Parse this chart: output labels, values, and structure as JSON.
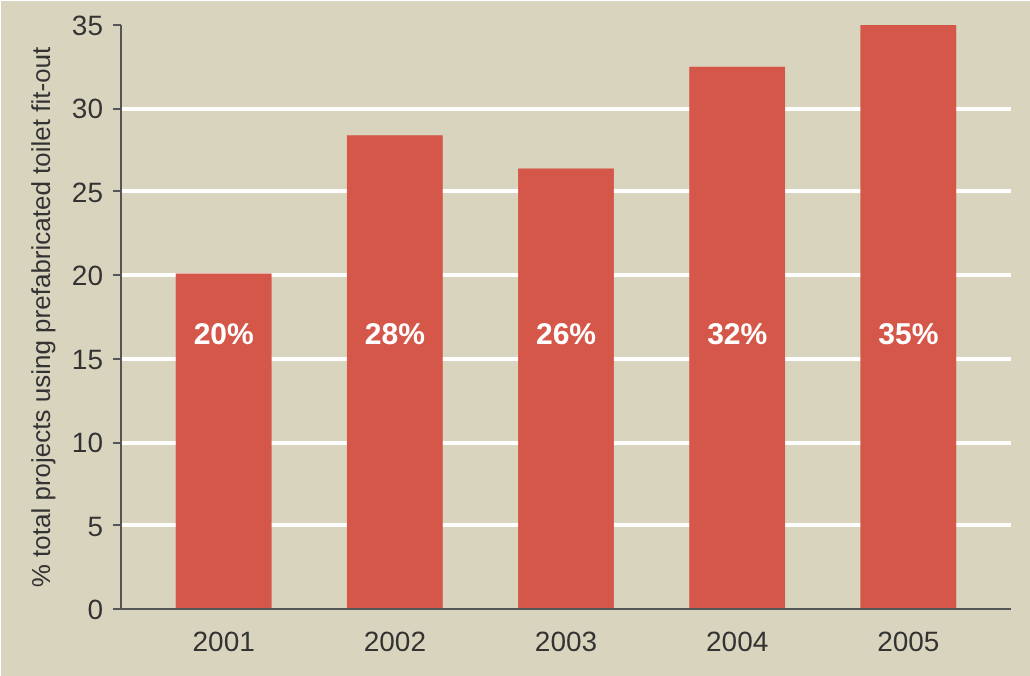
{
  "chart_data": {
    "type": "bar",
    "ylabel": "% total projects using prefabricated toilet fit-out",
    "categories": [
      "2001",
      "2002",
      "2003",
      "2004",
      "2005"
    ],
    "values": [
      20.1,
      28.4,
      26.4,
      32.5,
      35
    ],
    "value_labels": [
      "20%",
      "28%",
      "26%",
      "32%",
      "35%"
    ],
    "color": "#d4574a",
    "ylim": [
      0,
      35
    ],
    "yticks": [
      0,
      5,
      10,
      15,
      20,
      25,
      30,
      35
    ],
    "grid": "y"
  }
}
